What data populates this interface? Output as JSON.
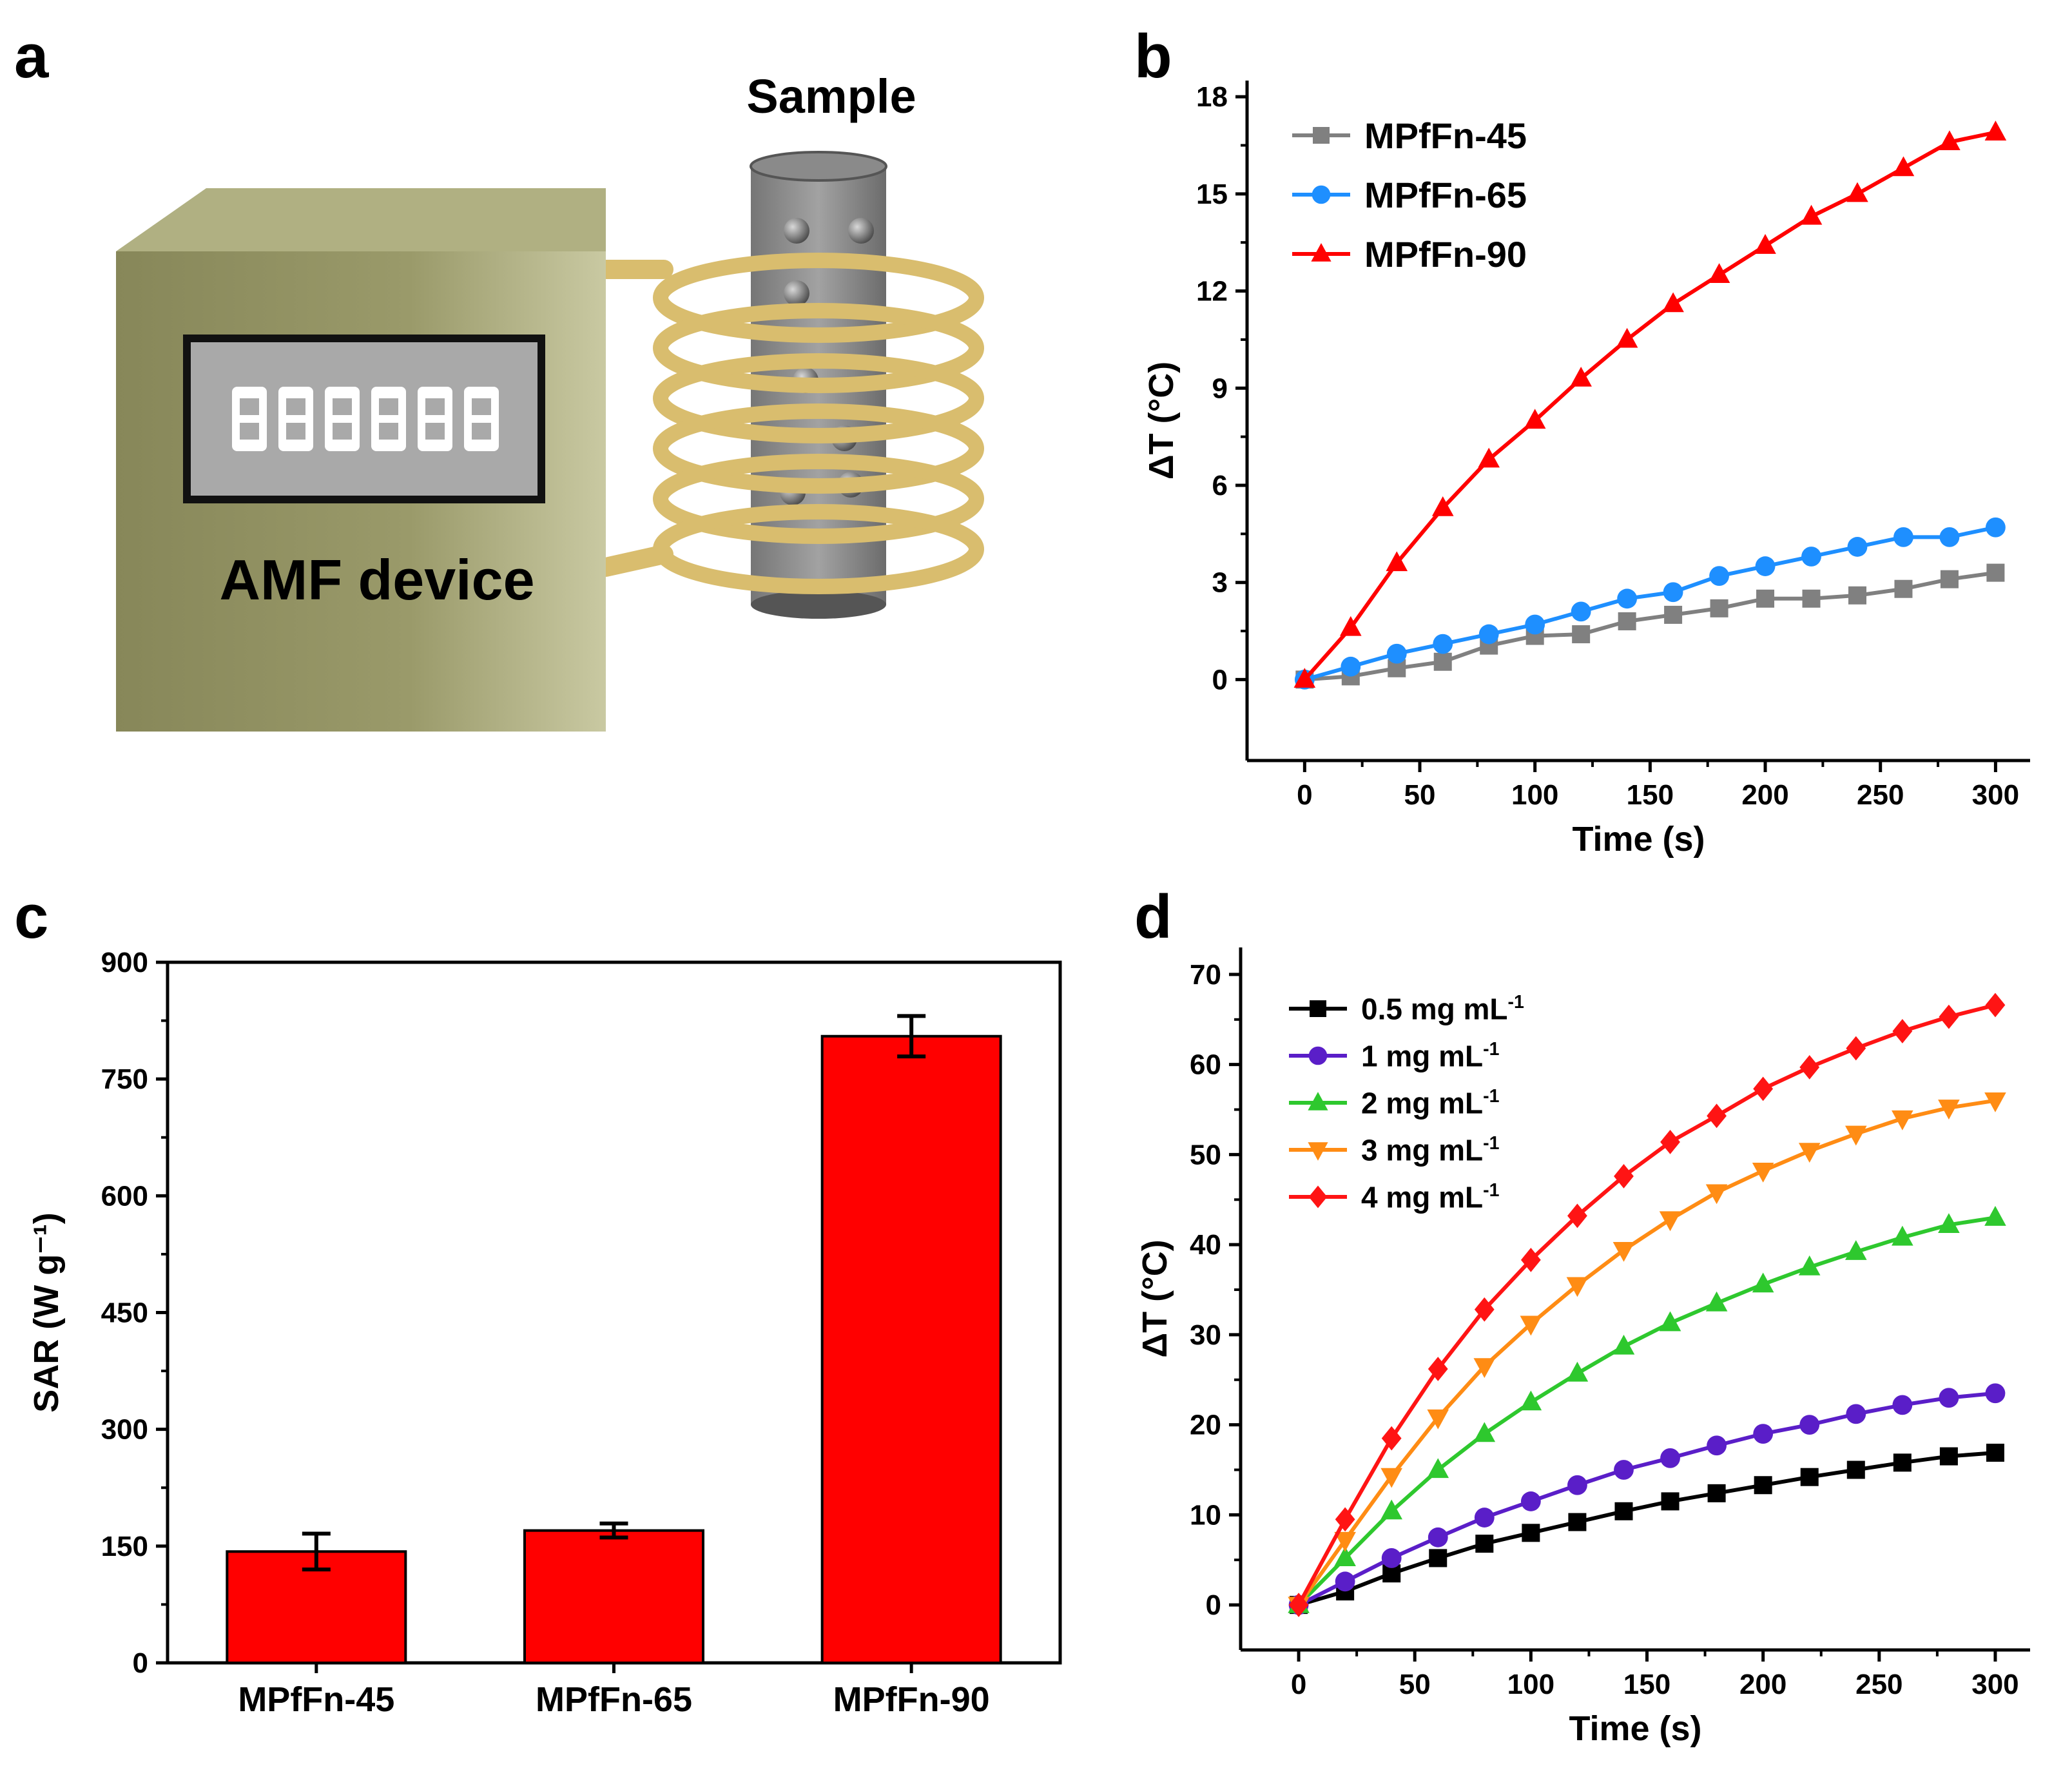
{
  "panel_letters": {
    "a": "a",
    "b": "b",
    "c": "c",
    "d": "d"
  },
  "diagram": {
    "device_label": "AMF device",
    "sample_label": "Sample",
    "colors": {
      "box": "#8f8f5e",
      "coil": "#e8cf86",
      "tube": "#777777",
      "display": "#a9a9a9"
    }
  },
  "chart_data": [
    {
      "id": "b",
      "type": "line",
      "title": "",
      "xlabel": "Time (s)",
      "ylabel": "ΔT (°C)",
      "xlim": [
        -25,
        315
      ],
      "ylim": [
        -2.5,
        18.5
      ],
      "xticks": [
        0,
        50,
        100,
        150,
        200,
        250,
        300
      ],
      "yticks": [
        0,
        3,
        6,
        9,
        12,
        15,
        18
      ],
      "x": [
        0,
        20,
        40,
        60,
        80,
        100,
        120,
        140,
        160,
        180,
        200,
        220,
        240,
        260,
        280,
        300
      ],
      "legend_position": "top-left",
      "series": [
        {
          "name": "MPfFn-45",
          "marker": "square",
          "color": "#808080",
          "values": [
            0,
            0.1,
            0.35,
            0.55,
            1.05,
            1.35,
            1.4,
            1.8,
            2.0,
            2.2,
            2.5,
            2.5,
            2.6,
            2.8,
            3.1,
            3.3
          ]
        },
        {
          "name": "MPfFn-65",
          "marker": "circle",
          "color": "#1e8fff",
          "values": [
            0,
            0.4,
            0.8,
            1.1,
            1.4,
            1.7,
            2.1,
            2.5,
            2.7,
            3.2,
            3.5,
            3.8,
            4.1,
            4.4,
            4.4,
            4.7
          ]
        },
        {
          "name": "MPfFn-90",
          "marker": "triangle-up",
          "color": "#ff0000",
          "values": [
            0,
            1.6,
            3.6,
            5.3,
            6.8,
            8.0,
            9.3,
            10.5,
            11.6,
            12.5,
            13.4,
            14.3,
            15.0,
            15.8,
            16.6,
            16.9
          ]
        }
      ]
    },
    {
      "id": "c",
      "type": "bar",
      "title": "",
      "xlabel": "",
      "ylabel": "SAR (W g⁻¹)",
      "ylim": [
        0,
        900
      ],
      "yticks": [
        0,
        150,
        300,
        450,
        600,
        750,
        900
      ],
      "categories": [
        "MPfFn-45",
        "MPfFn-65",
        "MPfFn-90"
      ],
      "values": [
        143,
        170,
        805
      ],
      "errors": [
        23,
        9,
        26
      ],
      "color": "#ff0000"
    },
    {
      "id": "d",
      "type": "line",
      "title": "",
      "xlabel": "Time (s)",
      "ylabel": "ΔT (°C)",
      "xlim": [
        -25,
        315
      ],
      "ylim": [
        -5,
        73
      ],
      "xticks": [
        0,
        50,
        100,
        150,
        200,
        250,
        300
      ],
      "yticks": [
        0,
        10,
        20,
        30,
        40,
        50,
        60,
        70
      ],
      "x": [
        0,
        20,
        40,
        60,
        80,
        100,
        120,
        140,
        160,
        180,
        200,
        220,
        240,
        260,
        280,
        300
      ],
      "legend_position": "top-left",
      "series": [
        {
          "name": "0.5 mg mL",
          "sup": "-1",
          "marker": "square",
          "color": "#000000",
          "values": [
            0,
            1.5,
            3.5,
            5.2,
            6.8,
            8.0,
            9.2,
            10.4,
            11.5,
            12.4,
            13.3,
            14.2,
            15.0,
            15.8,
            16.5,
            16.9
          ]
        },
        {
          "name": "1 mg mL",
          "sup": "-1",
          "marker": "circle",
          "color": "#5a1ec8",
          "values": [
            0,
            2.6,
            5.2,
            7.5,
            9.7,
            11.5,
            13.3,
            15.0,
            16.3,
            17.7,
            19.0,
            20.0,
            21.2,
            22.2,
            23.0,
            23.5
          ]
        },
        {
          "name": "2 mg mL",
          "sup": "-1",
          "marker": "triangle-up",
          "color": "#2ec82e",
          "values": [
            0,
            5.2,
            10.4,
            15.0,
            19.0,
            22.5,
            25.7,
            28.7,
            31.3,
            33.5,
            35.6,
            37.5,
            39.2,
            40.8,
            42.2,
            43.0
          ]
        },
        {
          "name": "3 mg mL",
          "sup": "-1",
          "marker": "triangle-down",
          "color": "#ff8c14",
          "values": [
            0,
            7.2,
            14.3,
            20.8,
            26.5,
            31.2,
            35.5,
            39.4,
            42.8,
            45.8,
            48.2,
            50.4,
            52.3,
            54.0,
            55.2,
            56.0
          ]
        },
        {
          "name": "4 mg mL",
          "sup": "-1",
          "marker": "diamond",
          "color": "#ff1414",
          "values": [
            0,
            9.5,
            18.5,
            26.2,
            32.8,
            38.3,
            43.2,
            47.6,
            51.4,
            54.3,
            57.3,
            59.7,
            61.8,
            63.7,
            65.3,
            66.6
          ]
        }
      ]
    }
  ]
}
